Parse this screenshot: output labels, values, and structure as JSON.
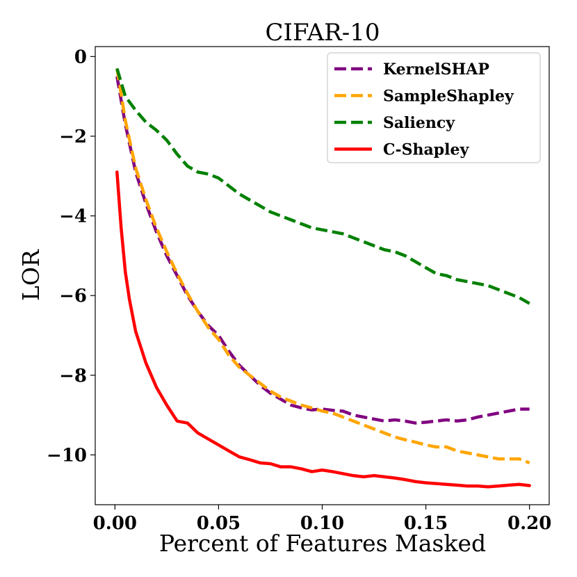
{
  "chart_data": {
    "type": "line",
    "title": "CIFAR-10",
    "xlabel": "Percent of Features Masked",
    "ylabel": "LOR",
    "xlim": [
      -0.0095,
      0.2095
    ],
    "ylim": [
      -11.25,
      0.25
    ],
    "xticks": [
      0.0,
      0.05,
      0.1,
      0.15,
      0.2
    ],
    "xtick_labels": [
      "0.00",
      "0.05",
      "0.10",
      "0.15",
      "0.20"
    ],
    "yticks": [
      0,
      -2,
      -4,
      -6,
      -8,
      -10
    ],
    "ytick_labels": [
      "0",
      "−2",
      "−4",
      "−6",
      "−8",
      "−10"
    ],
    "legend_position": "top-right",
    "grid": false,
    "series": [
      {
        "name": "KernelSHAP",
        "color": "#800080",
        "style": "dashed",
        "x": [
          0.001,
          0.005,
          0.01,
          0.015,
          0.02,
          0.025,
          0.03,
          0.035,
          0.04,
          0.045,
          0.05,
          0.055,
          0.06,
          0.065,
          0.07,
          0.075,
          0.08,
          0.085,
          0.09,
          0.095,
          0.1,
          0.105,
          0.11,
          0.115,
          0.12,
          0.125,
          0.13,
          0.135,
          0.14,
          0.145,
          0.15,
          0.155,
          0.16,
          0.165,
          0.17,
          0.175,
          0.18,
          0.185,
          0.19,
          0.195,
          0.2
        ],
        "y": [
          -0.5,
          -1.7,
          -2.9,
          -3.7,
          -4.4,
          -5.0,
          -5.5,
          -6.0,
          -6.4,
          -6.75,
          -7.0,
          -7.4,
          -7.75,
          -8.0,
          -8.25,
          -8.45,
          -8.6,
          -8.75,
          -8.82,
          -8.87,
          -8.85,
          -8.88,
          -8.9,
          -9.0,
          -9.05,
          -9.1,
          -9.15,
          -9.12,
          -9.15,
          -9.2,
          -9.18,
          -9.15,
          -9.12,
          -9.15,
          -9.12,
          -9.05,
          -9.0,
          -8.95,
          -8.9,
          -8.85,
          -8.85
        ]
      },
      {
        "name": "SampleShapley",
        "color": "#FFA500",
        "style": "dashed",
        "x": [
          0.001,
          0.005,
          0.01,
          0.015,
          0.02,
          0.025,
          0.03,
          0.035,
          0.04,
          0.045,
          0.05,
          0.055,
          0.06,
          0.065,
          0.07,
          0.075,
          0.08,
          0.085,
          0.09,
          0.095,
          0.1,
          0.105,
          0.11,
          0.115,
          0.12,
          0.125,
          0.13,
          0.135,
          0.14,
          0.145,
          0.15,
          0.155,
          0.16,
          0.165,
          0.17,
          0.175,
          0.18,
          0.185,
          0.19,
          0.195,
          0.2
        ],
        "y": [
          -0.3,
          -1.6,
          -2.8,
          -3.6,
          -4.3,
          -4.9,
          -5.45,
          -5.95,
          -6.4,
          -6.8,
          -7.1,
          -7.5,
          -7.8,
          -8.0,
          -8.2,
          -8.4,
          -8.55,
          -8.65,
          -8.75,
          -8.82,
          -8.9,
          -8.95,
          -9.05,
          -9.15,
          -9.25,
          -9.35,
          -9.45,
          -9.55,
          -9.62,
          -9.68,
          -9.75,
          -9.8,
          -9.8,
          -9.9,
          -9.95,
          -10.0,
          -10.05,
          -10.1,
          -10.1,
          -10.1,
          -10.2
        ]
      },
      {
        "name": "Saliency",
        "color": "#008000",
        "style": "dashed",
        "x": [
          0.001,
          0.005,
          0.01,
          0.015,
          0.02,
          0.025,
          0.03,
          0.035,
          0.04,
          0.045,
          0.05,
          0.055,
          0.06,
          0.065,
          0.07,
          0.075,
          0.08,
          0.085,
          0.09,
          0.095,
          0.1,
          0.105,
          0.11,
          0.115,
          0.12,
          0.125,
          0.13,
          0.135,
          0.14,
          0.145,
          0.15,
          0.155,
          0.16,
          0.165,
          0.17,
          0.175,
          0.18,
          0.185,
          0.19,
          0.195,
          0.2
        ],
        "y": [
          -0.3,
          -1.0,
          -1.35,
          -1.65,
          -1.85,
          -2.1,
          -2.45,
          -2.75,
          -2.9,
          -2.95,
          -3.05,
          -3.25,
          -3.45,
          -3.6,
          -3.75,
          -3.9,
          -4.0,
          -4.1,
          -4.2,
          -4.3,
          -4.35,
          -4.4,
          -4.45,
          -4.55,
          -4.65,
          -4.75,
          -4.85,
          -4.9,
          -5.0,
          -5.15,
          -5.3,
          -5.45,
          -5.5,
          -5.6,
          -5.65,
          -5.7,
          -5.75,
          -5.85,
          -5.95,
          -6.05,
          -6.2
        ]
      },
      {
        "name": "C-Shapley",
        "color": "#FF0000",
        "style": "solid",
        "x": [
          0.001,
          0.003,
          0.005,
          0.007,
          0.01,
          0.015,
          0.02,
          0.025,
          0.03,
          0.035,
          0.04,
          0.045,
          0.05,
          0.055,
          0.06,
          0.065,
          0.07,
          0.075,
          0.08,
          0.085,
          0.09,
          0.095,
          0.1,
          0.105,
          0.11,
          0.115,
          0.12,
          0.125,
          0.13,
          0.135,
          0.14,
          0.145,
          0.15,
          0.155,
          0.16,
          0.165,
          0.17,
          0.175,
          0.18,
          0.185,
          0.19,
          0.195,
          0.2
        ],
        "y": [
          -2.9,
          -4.3,
          -5.4,
          -6.1,
          -6.9,
          -7.7,
          -8.3,
          -8.75,
          -9.15,
          -9.2,
          -9.45,
          -9.6,
          -9.75,
          -9.9,
          -10.05,
          -10.12,
          -10.2,
          -10.22,
          -10.3,
          -10.3,
          -10.35,
          -10.42,
          -10.38,
          -10.42,
          -10.47,
          -10.52,
          -10.55,
          -10.52,
          -10.55,
          -10.58,
          -10.62,
          -10.67,
          -10.7,
          -10.72,
          -10.74,
          -10.76,
          -10.78,
          -10.78,
          -10.8,
          -10.78,
          -10.76,
          -10.74,
          -10.77
        ]
      }
    ]
  }
}
